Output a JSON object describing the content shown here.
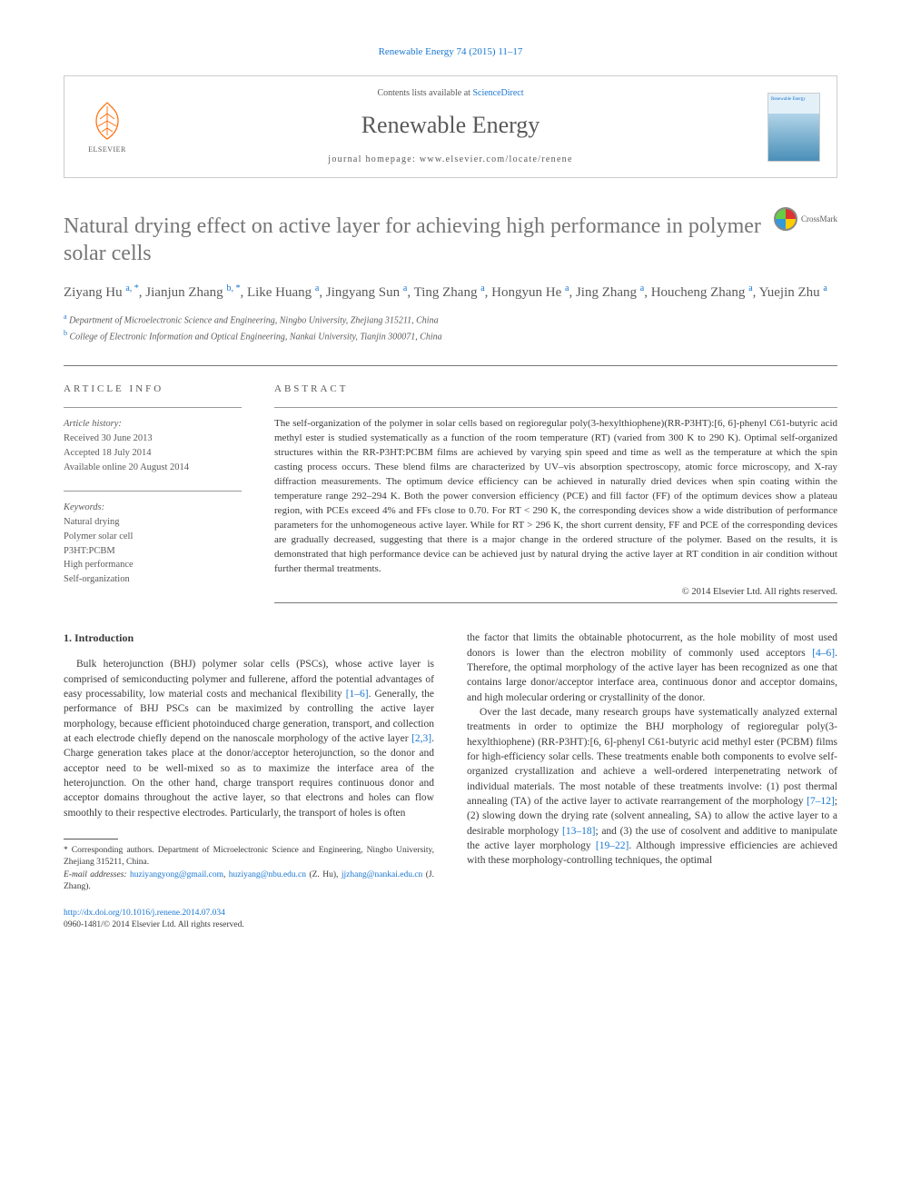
{
  "journal_ref": "Renewable Energy 74 (2015) 11–17",
  "header": {
    "contents_prefix": "Contents lists available at ",
    "contents_link": "ScienceDirect",
    "journal_name": "Renewable Energy",
    "homepage_prefix": "journal homepage: ",
    "homepage_url": "www.elsevier.com/locate/renene",
    "publisher": "ELSEVIER",
    "cover_label": "Renewable Energy"
  },
  "crossmark_label": "CrossMark",
  "title": "Natural drying effect on active layer for achieving high performance in polymer solar cells",
  "authors_html": "Ziyang Hu <sup>a, *</sup>, Jianjun Zhang <sup>b, *</sup>, Like Huang <sup>a</sup>, Jingyang Sun <sup>a</sup>, Ting Zhang <sup>a</sup>, Hongyun He <sup>a</sup>, Jing Zhang <sup>a</sup>, Houcheng Zhang <sup>a</sup>, Yuejin Zhu <sup>a</sup>",
  "affiliations": [
    {
      "sup": "a",
      "text": "Department of Microelectronic Science and Engineering, Ningbo University, Zhejiang 315211, China"
    },
    {
      "sup": "b",
      "text": "College of Electronic Information and Optical Engineering, Nankai University, Tianjin 300071, China"
    }
  ],
  "info": {
    "article_info_label": "ARTICLE INFO",
    "abstract_label": "ABSTRACT",
    "history_label": "Article history:",
    "history": [
      "Received 30 June 2013",
      "Accepted 18 July 2014",
      "Available online 20 August 2014"
    ],
    "keywords_label": "Keywords:",
    "keywords": [
      "Natural drying",
      "Polymer solar cell",
      "P3HT:PCBM",
      "High performance",
      "Self-organization"
    ]
  },
  "abstract": "The self-organization of the polymer in solar cells based on regioregular poly(3-hexylthiophene)(RR-P3HT):[6, 6]-phenyl C61-butyric acid methyl ester is studied systematically as a function of the room temperature (RT) (varied from 300 K to 290 K). Optimal self-organized structures within the RR-P3HT:PCBM films are achieved by varying spin speed and time as well as the temperature at which the spin casting process occurs. These blend films are characterized by UV–vis absorption spectroscopy, atomic force microscopy, and X-ray diffraction measurements. The optimum device efficiency can be achieved in naturally dried devices when spin coating within the temperature range 292–294 K. Both the power conversion efficiency (PCE) and fill factor (FF) of the optimum devices show a plateau region, with PCEs exceed 4% and FFs close to 0.70. For RT < 290 K, the corresponding devices show a wide distribution of performance parameters for the unhomogeneous active layer. While for RT > 296 K, the short current density, FF and PCE of the corresponding devices are gradually decreased, suggesting that there is a major change in the ordered structure of the polymer. Based on the results, it is demonstrated that high performance device can be achieved just by natural drying the active layer at RT condition in air condition without further thermal treatments.",
  "copyright": "© 2014 Elsevier Ltd. All rights reserved.",
  "intro_heading": "1. Introduction",
  "intro_col1": "Bulk heterojunction (BHJ) polymer solar cells (PSCs), whose active layer is comprised of semiconducting polymer and fullerene, afford the potential advantages of easy processability, low material costs and mechanical flexibility <a>[1–6]</a>. Generally, the performance of BHJ PSCs can be maximized by controlling the active layer morphology, because efficient photoinduced charge generation, transport, and collection at each electrode chiefly depend on the nanoscale morphology of the active layer <a>[2,3]</a>. Charge generation takes place at the donor/acceptor heterojunction, so the donor and acceptor need to be well-mixed so as to maximize the interface area of the heterojunction. On the other hand, charge transport requires continuous donor and acceptor domains throughout the active layer, so that electrons and holes can flow smoothly to their respective electrodes. Particularly, the transport of holes is often",
  "intro_col2_p1": "the factor that limits the obtainable photocurrent, as the hole mobility of most used donors is lower than the electron mobility of commonly used acceptors <a>[4–6]</a>. Therefore, the optimal morphology of the active layer has been recognized as one that contains large donor/acceptor interface area, continuous donor and acceptor domains, and high molecular ordering or crystallinity of the donor.",
  "intro_col2_p2": "Over the last decade, many research groups have systematically analyzed external treatments in order to optimize the BHJ morphology of regioregular poly(3-hexylthiophene) (RR-P3HT):[6, 6]-phenyl C61-butyric acid methyl ester (PCBM) films for high-efficiency solar cells. These treatments enable both components to evolve self-organized crystallization and achieve a well-ordered interpenetrating network of individual materials. The most notable of these treatments involve: (1) post thermal annealing (TA) of the active layer to activate rearrangement of the morphology <a>[7–12]</a>; (2) slowing down the drying rate (solvent annealing, SA) to allow the active layer to a desirable morphology <a>[13–18]</a>; and (3) the use of cosolvent and additive to manipulate the active layer morphology <a>[19–22]</a>. Although impressive efficiencies are achieved with these morphology-controlling techniques, the optimal",
  "footnote": {
    "corresponding": "* Corresponding authors. Department of Microelectronic Science and Engineering, Ningbo University, Zhejiang 315211, China.",
    "email_label": "E-mail addresses:",
    "email1": "huziyangyong@gmail.com",
    "email2": "huziyang@nbu.edu.cn",
    "email1_who": "(Z. Hu),",
    "email3": "jjzhang@nankai.edu.cn",
    "email3_who": "(J. Zhang)."
  },
  "footer": {
    "doi": "http://dx.doi.org/10.1016/j.renene.2014.07.034",
    "issn_line": "0960-1481/© 2014 Elsevier Ltd. All rights reserved."
  },
  "colors": {
    "link": "#1976d2",
    "text": "#3a3a3a",
    "muted": "#5a5a5a",
    "title_gray": "#767676",
    "elsevier_orange": "#ff6a00"
  }
}
